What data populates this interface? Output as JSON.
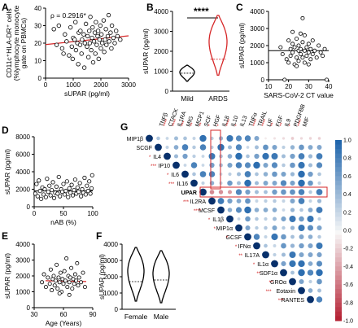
{
  "chart_data": [
    {
      "panel": "A",
      "type": "scatter",
      "annotation": "ρ = 0.2916*",
      "xlabel": "sUPAR (pg/ml)",
      "ylabel_lines": [
        "CD11c⁺HLA-DR⁺ cells",
        "(%lymphocyte monocyte",
        "gate on PBMCs)"
      ],
      "xlim": [
        0,
        3000
      ],
      "ylim": [
        0,
        40
      ],
      "xticks": [
        0,
        1000,
        2000,
        3000
      ],
      "yticks": [
        0,
        10,
        20,
        30,
        40
      ],
      "regression": {
        "x": [
          0,
          3000
        ],
        "y": [
          19.2,
          24.2
        ],
        "color": "#d62728"
      },
      "points": [
        [
          300,
          28
        ],
        [
          400,
          19
        ],
        [
          480,
          30
        ],
        [
          600,
          17
        ],
        [
          650,
          14
        ],
        [
          700,
          25
        ],
        [
          760,
          21
        ],
        [
          850,
          13
        ],
        [
          900,
          29
        ],
        [
          950,
          18
        ],
        [
          980,
          11
        ],
        [
          1000,
          23
        ],
        [
          1050,
          22
        ],
        [
          1080,
          32
        ],
        [
          1100,
          16
        ],
        [
          1150,
          20
        ],
        [
          1180,
          8
        ],
        [
          1200,
          26
        ],
        [
          1250,
          19
        ],
        [
          1260,
          27
        ],
        [
          1300,
          14
        ],
        [
          1320,
          22
        ],
        [
          1380,
          25
        ],
        [
          1400,
          6
        ],
        [
          1420,
          20
        ],
        [
          1460,
          31
        ],
        [
          1500,
          18
        ],
        [
          1520,
          24
        ],
        [
          1550,
          12
        ],
        [
          1580,
          27
        ],
        [
          1600,
          20
        ],
        [
          1620,
          35
        ],
        [
          1650,
          16
        ],
        [
          1680,
          23
        ],
        [
          1700,
          29
        ],
        [
          1720,
          9
        ],
        [
          1750,
          21
        ],
        [
          1780,
          26
        ],
        [
          1800,
          14
        ],
        [
          1820,
          32
        ],
        [
          1850,
          19
        ],
        [
          1880,
          24
        ],
        [
          1900,
          27
        ],
        [
          1920,
          11
        ],
        [
          1950,
          22
        ],
        [
          1980,
          30
        ],
        [
          2000,
          17
        ],
        [
          2020,
          25
        ],
        [
          2050,
          20
        ],
        [
          2100,
          33
        ],
        [
          2120,
          15
        ],
        [
          2150,
          22
        ],
        [
          2180,
          28
        ],
        [
          2200,
          19
        ],
        [
          2250,
          24
        ],
        [
          2280,
          36
        ],
        [
          2300,
          21
        ],
        [
          2350,
          26
        ],
        [
          2380,
          17
        ],
        [
          2400,
          30
        ],
        [
          2450,
          23
        ],
        [
          2500,
          20
        ],
        [
          2550,
          27
        ],
        [
          2600,
          24
        ],
        [
          2700,
          22
        ]
      ]
    },
    {
      "panel": "B",
      "type": "violin",
      "ylabel": "sUPAR (pg/ml)",
      "categories": [
        "Mild",
        "ARDS"
      ],
      "colors": [
        "#000000",
        "#d62728"
      ],
      "ylim": [
        0,
        4000
      ],
      "yticks": [
        0,
        1000,
        2000,
        3000,
        4000
      ],
      "medians": [
        900,
        1600
      ],
      "ranges": [
        [
          500,
          1300
        ],
        [
          800,
          3800
        ]
      ],
      "significance": "****"
    },
    {
      "panel": "C",
      "type": "scatter",
      "xlabel": "SARS-CoV-2 CT value",
      "ylabel": "sUPAR (pg/ml)",
      "xlim": [
        10,
        40
      ],
      "ylim": [
        0,
        4000
      ],
      "xticks": [
        10,
        20,
        30,
        40
      ],
      "yticks": [
        0,
        1000,
        2000,
        3000,
        4000
      ],
      "reference_line": 1700,
      "points": [
        [
          16,
          1900
        ],
        [
          17,
          1500
        ],
        [
          18,
          0
        ],
        [
          19,
          1200
        ],
        [
          20,
          2300
        ],
        [
          21,
          1800
        ],
        [
          21,
          1400
        ],
        [
          22,
          2100
        ],
        [
          22,
          1600
        ],
        [
          23,
          1900
        ],
        [
          23,
          900
        ],
        [
          24,
          2400
        ],
        [
          24,
          1300
        ],
        [
          25,
          1700
        ],
        [
          25,
          2000
        ],
        [
          25,
          1100
        ],
        [
          26,
          1800
        ],
        [
          26,
          1500
        ],
        [
          27,
          2200
        ],
        [
          27,
          1300
        ],
        [
          27,
          3600
        ],
        [
          28,
          1700
        ],
        [
          28,
          2600
        ],
        [
          28,
          1000
        ],
        [
          29,
          1900
        ],
        [
          29,
          1400
        ],
        [
          30,
          1600
        ],
        [
          30,
          2100
        ],
        [
          31,
          1200
        ],
        [
          31,
          1800
        ],
        [
          32,
          1500
        ],
        [
          33,
          1700
        ],
        [
          34,
          1300
        ],
        [
          35,
          2000
        ],
        [
          36,
          1600
        ],
        [
          37,
          1400
        ],
        [
          38,
          1800
        ],
        [
          39,
          0
        ],
        [
          24,
          800
        ],
        [
          26,
          2700
        ],
        [
          30,
          900
        ],
        [
          32,
          2300
        ],
        [
          20,
          1000
        ],
        [
          22,
          2800
        ]
      ]
    },
    {
      "panel": "D",
      "type": "scatter",
      "xlabel": "nAB (%)",
      "ylabel": "sUPAR (pg/ml)",
      "xlim": [
        0,
        100
      ],
      "ylim": [
        0,
        8000
      ],
      "xticks": [
        0,
        50,
        100
      ],
      "yticks": [
        0,
        2000,
        4000,
        6000,
        8000
      ],
      "reference_line": 1800,
      "points": [
        [
          2,
          1500
        ],
        [
          4,
          2600
        ],
        [
          6,
          1200
        ],
        [
          8,
          3000
        ],
        [
          10,
          1800
        ],
        [
          12,
          900
        ],
        [
          14,
          2200
        ],
        [
          16,
          1400
        ],
        [
          18,
          2000
        ],
        [
          20,
          1100
        ],
        [
          22,
          3200
        ],
        [
          24,
          1700
        ],
        [
          26,
          2400
        ],
        [
          28,
          1300
        ],
        [
          30,
          1900
        ],
        [
          32,
          2800
        ],
        [
          34,
          1000
        ],
        [
          36,
          1600
        ],
        [
          38,
          2300
        ],
        [
          40,
          1500
        ],
        [
          42,
          3400
        ],
        [
          44,
          1200
        ],
        [
          46,
          2000
        ],
        [
          48,
          1700
        ],
        [
          50,
          2600
        ],
        [
          52,
          1400
        ],
        [
          54,
          1800
        ],
        [
          56,
          2900
        ],
        [
          58,
          1100
        ],
        [
          60,
          2100
        ],
        [
          62,
          1600
        ],
        [
          64,
          2500
        ],
        [
          66,
          1300
        ],
        [
          68,
          1900
        ],
        [
          70,
          3100
        ],
        [
          72,
          1500
        ],
        [
          74,
          2200
        ],
        [
          76,
          1700
        ],
        [
          78,
          2700
        ],
        [
          80,
          1200
        ],
        [
          82,
          2000
        ],
        [
          84,
          1600
        ],
        [
          86,
          3300
        ],
        [
          88,
          1400
        ],
        [
          90,
          2400
        ],
        [
          92,
          1800
        ],
        [
          94,
          2900
        ],
        [
          96,
          1500
        ],
        [
          98,
          2100
        ],
        [
          99,
          3600
        ]
      ]
    },
    {
      "panel": "E",
      "type": "scatter",
      "xlabel": "Age (Years)",
      "ylabel": "sUPAR (pg/ml)",
      "xlim": [
        30,
        90
      ],
      "ylim": [
        0,
        4000
      ],
      "xticks": [
        30,
        60,
        90
      ],
      "yticks": [
        0,
        1000,
        2000,
        3000,
        4000
      ],
      "reference_line": 1700,
      "regression_color": "#d62728",
      "points": [
        [
          38,
          1600
        ],
        [
          40,
          2100
        ],
        [
          42,
          1300
        ],
        [
          44,
          1900
        ],
        [
          46,
          1500
        ],
        [
          47,
          2400
        ],
        [
          48,
          1100
        ],
        [
          49,
          1800
        ],
        [
          50,
          2000
        ],
        [
          51,
          1400
        ],
        [
          52,
          1700
        ],
        [
          53,
          2700
        ],
        [
          54,
          1200
        ],
        [
          55,
          1900
        ],
        [
          56,
          1600
        ],
        [
          57,
          2200
        ],
        [
          58,
          1000
        ],
        [
          59,
          1800
        ],
        [
          60,
          1500
        ],
        [
          61,
          2300
        ],
        [
          62,
          1700
        ],
        [
          63,
          3100
        ],
        [
          64,
          1300
        ],
        [
          65,
          2000
        ],
        [
          66,
          1600
        ],
        [
          67,
          1900
        ],
        [
          68,
          2500
        ],
        [
          69,
          1200
        ],
        [
          70,
          1800
        ],
        [
          71,
          1500
        ],
        [
          72,
          2100
        ],
        [
          73,
          1700
        ],
        [
          74,
          2800
        ],
        [
          75,
          1400
        ],
        [
          76,
          1900
        ],
        [
          78,
          1600
        ],
        [
          80,
          2200
        ],
        [
          82,
          1300
        ],
        [
          56,
          900
        ],
        [
          66,
          800
        ]
      ]
    },
    {
      "panel": "F",
      "type": "violin",
      "ylabel": "sUPAR (pg/ml)",
      "categories": [
        "Female",
        "Male"
      ],
      "colors": [
        "#000000",
        "#000000"
      ],
      "ylim": [
        0,
        4000
      ],
      "yticks": [
        0,
        1000,
        2000,
        3000,
        4000
      ],
      "medians": [
        1700,
        1800
      ],
      "ranges": [
        [
          500,
          3800
        ],
        [
          400,
          3600
        ]
      ]
    },
    {
      "panel": "G",
      "type": "heatmap",
      "variables": [
        "MIP1β",
        "SCGF",
        "IL4",
        "IP10",
        "IL6",
        "IL16",
        "UPAR",
        "IL2RA",
        "MCSF",
        "IL1β",
        "MIP1α",
        "GCSF",
        "IFNα",
        "IL17A",
        "IL1α",
        "SDF1α",
        "GROα",
        "Eotaxin",
        "RANTES"
      ],
      "top_labels": [
        "TNFβ",
        "CTACK",
        "IL1RA",
        "MIG",
        "MCP1",
        "SCF",
        "HGF",
        "IL18",
        "IL10",
        "IL13",
        "TNFα",
        "TRAIL",
        "LIF",
        "FGF",
        "IL9",
        "PDGFBB",
        "MIF"
      ],
      "top_sig": [
        "****",
        "****",
        "***",
        "**",
        "**",
        "*",
        "*",
        "****",
        "*",
        "",
        "****",
        "****",
        "**",
        "**",
        "*",
        "****",
        ""
      ],
      "left_sig": [
        "",
        "",
        "*",
        "***",
        "*",
        "***",
        "",
        "***",
        "****",
        "*",
        "*",
        "*",
        "*",
        "**",
        "*",
        "**",
        "**",
        "***",
        "***"
      ],
      "highlight": "UPAR",
      "colorbar": {
        "min": -1.0,
        "max": 1.0,
        "ticks": [
          1.0,
          0.8,
          0.6,
          0.4,
          0.2,
          0.0,
          -0.2,
          -0.4,
          -0.6,
          -0.8,
          -1.0
        ],
        "colors": [
          "#b2182b",
          "#f7f7f7",
          "#2166ac"
        ]
      }
    }
  ]
}
